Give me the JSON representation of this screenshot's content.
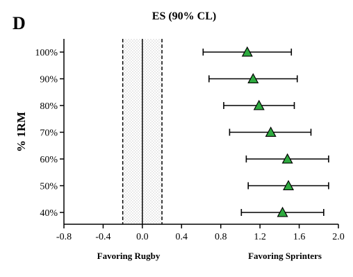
{
  "panel_label": "D",
  "chart_data": {
    "type": "forest",
    "title": "ES (90% CL)",
    "ylabel": "% 1RM",
    "xlabel": "",
    "categories": [
      "100%",
      "90%",
      "80%",
      "70%",
      "60%",
      "50%",
      "40%"
    ],
    "points": [
      {
        "label": "100%",
        "es": 1.07,
        "lower": 0.62,
        "upper": 1.52
      },
      {
        "label": "90%",
        "es": 1.13,
        "lower": 0.68,
        "upper": 1.58
      },
      {
        "label": "80%",
        "es": 1.19,
        "lower": 0.83,
        "upper": 1.55
      },
      {
        "label": "70%",
        "es": 1.31,
        "lower": 0.89,
        "upper": 1.72
      },
      {
        "label": "60%",
        "es": 1.48,
        "lower": 1.06,
        "upper": 1.9
      },
      {
        "label": "50%",
        "es": 1.49,
        "lower": 1.08,
        "upper": 1.9
      },
      {
        "label": "40%",
        "es": 1.43,
        "lower": 1.01,
        "upper": 1.85
      }
    ],
    "xlim": [
      -0.8,
      2.0
    ],
    "xticks": [
      "-0.8",
      "-0.4",
      "0.0",
      "0.4",
      "0.8",
      "1.2",
      "1.6",
      "2.0"
    ],
    "xtick_values": [
      -0.8,
      -0.4,
      0.0,
      0.4,
      0.8,
      1.2,
      1.6,
      2.0
    ],
    "trivial_zone": [
      -0.2,
      0.2
    ],
    "reference_line": 0.0,
    "region_labels": {
      "left": "Favoring Rugby",
      "right": "Favoring Sprinters"
    },
    "marker_color": "#2eaa3f",
    "marker_shape": "triangle",
    "grid": false
  }
}
